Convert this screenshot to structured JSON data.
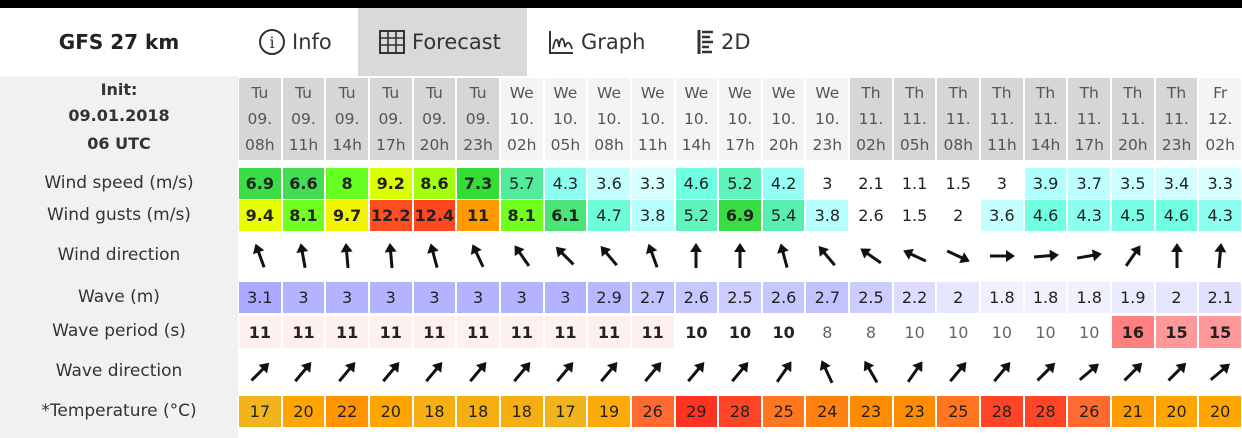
{
  "header": {
    "model": "GFS 27 km",
    "tabs": [
      "Info",
      "Forecast",
      "Graph",
      "2D"
    ]
  },
  "init": {
    "label": "Init:",
    "date": "09.01.2018",
    "time": "06 UTC"
  },
  "columns": {
    "days": [
      "Tu",
      "Tu",
      "Tu",
      "Tu",
      "Tu",
      "Tu",
      "We",
      "We",
      "We",
      "We",
      "We",
      "We",
      "We",
      "We",
      "Th",
      "Th",
      "Th",
      "Th",
      "Th",
      "Th",
      "Th",
      "Th",
      "Fr"
    ],
    "dates": [
      "09.",
      "09.",
      "09.",
      "09.",
      "09.",
      "09.",
      "10.",
      "10.",
      "10.",
      "10.",
      "10.",
      "10.",
      "10.",
      "10.",
      "11.",
      "11.",
      "11.",
      "11.",
      "11.",
      "11.",
      "11.",
      "11.",
      "12."
    ],
    "hours": [
      "08h",
      "11h",
      "14h",
      "17h",
      "20h",
      "23h",
      "02h",
      "05h",
      "08h",
      "11h",
      "14h",
      "17h",
      "20h",
      "23h",
      "02h",
      "05h",
      "08h",
      "11h",
      "14h",
      "17h",
      "20h",
      "23h",
      "02h"
    ]
  },
  "rows": [
    {
      "label": "Wind speed (m/s)",
      "values": [
        6.9,
        6.6,
        8,
        9.2,
        8.6,
        7.3,
        5.7,
        4.3,
        3.6,
        3.3,
        4.6,
        5.2,
        4.2,
        3,
        2.1,
        1.1,
        1.5,
        3,
        3.9,
        3.7,
        3.5,
        3.4,
        3.3
      ]
    },
    {
      "label": "Wind gusts (m/s)",
      "values": [
        9.4,
        8.1,
        9.7,
        12.2,
        12.4,
        11,
        8.1,
        6.1,
        4.7,
        3.8,
        5.2,
        6.9,
        5.4,
        3.8,
        2.6,
        1.5,
        2,
        3.6,
        4.6,
        4.3,
        4.5,
        4.6,
        4.3
      ]
    },
    {
      "label": "Wind direction",
      "directions": [
        -20,
        -10,
        -5,
        -5,
        -15,
        -25,
        -35,
        -45,
        -40,
        -20,
        0,
        0,
        -15,
        -40,
        -55,
        -65,
        115,
        90,
        85,
        80,
        35,
        0,
        5
      ]
    },
    {
      "label": "Wave (m)",
      "values": [
        3.1,
        3,
        3,
        3,
        3,
        3,
        3,
        3,
        2.9,
        2.7,
        2.6,
        2.5,
        2.6,
        2.7,
        2.5,
        2.2,
        2,
        1.8,
        1.8,
        1.8,
        1.9,
        2,
        2.1
      ]
    },
    {
      "label": "Wave period (s)",
      "values": [
        11,
        11,
        11,
        11,
        11,
        11,
        11,
        11,
        11,
        11,
        10,
        10,
        10,
        8,
        8,
        10,
        10,
        10,
        10,
        10,
        16,
        15,
        15
      ]
    },
    {
      "label": "Wave direction",
      "directions": [
        45,
        40,
        40,
        40,
        40,
        40,
        40,
        40,
        40,
        40,
        40,
        40,
        35,
        -25,
        -30,
        35,
        40,
        40,
        45,
        50,
        45,
        45,
        50
      ]
    },
    {
      "label": "*Temperature (°C)",
      "values": [
        17,
        20,
        22,
        20,
        18,
        18,
        18,
        17,
        19,
        26,
        29,
        28,
        25,
        24,
        23,
        23,
        25,
        28,
        28,
        26,
        21,
        20,
        20
      ]
    }
  ]
}
